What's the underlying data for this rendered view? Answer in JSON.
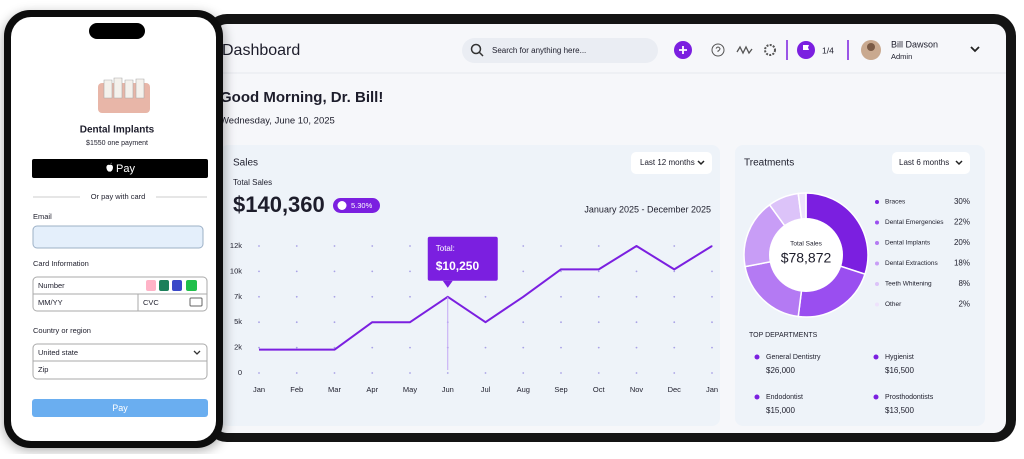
{
  "dashboard": {
    "title": "Dashboard",
    "search_placeholder": "Search for anything here...",
    "flag_count": "1/4",
    "user_name": "Bill Dawson",
    "user_role": "Admin",
    "greeting": "Good Morning, Dr. Bill!",
    "date": "Wednesday, June 10, 2025"
  },
  "sales": {
    "title": "Sales",
    "filter": "Last 12 months",
    "subtitle": "Total Sales",
    "total": "$140,360",
    "change": "5.30%",
    "range": "January 2025 - December 2025",
    "tooltip": {
      "label": "Total:",
      "value": "$10,250"
    },
    "chart": {
      "type": "line",
      "categories": [
        "Jan",
        "Feb",
        "Mar",
        "Apr",
        "May",
        "Jun",
        "Jul",
        "Aug",
        "Sep",
        "Oct",
        "Nov",
        "Dec",
        "Jan"
      ],
      "values": [
        2300,
        2300,
        2300,
        5000,
        5000,
        7500,
        5000,
        7500,
        10200,
        10200,
        12500,
        10200,
        12500
      ],
      "color": "#7b1fe0",
      "ylim": [
        0,
        12500
      ],
      "yticks": [
        0,
        {
          "value": 2500,
          "label": "2k"
        },
        {
          "value": 5000,
          "label": "5k"
        },
        {
          "value": 7500,
          "label": "7k"
        },
        {
          "value": 10000,
          "label": "10k"
        },
        {
          "value": 12500,
          "label": "12k"
        }
      ],
      "grid": true
    }
  },
  "treatments": {
    "title": "Treatments",
    "filter": "Last 6 months",
    "center_label": "Total Sales",
    "center_value": "$78,872",
    "chart": {
      "type": "pie",
      "categories": [
        "Braces",
        "Dental Emergencies",
        "Dental Implants",
        "Dental Extractions",
        "Teeth Whitening",
        "Other"
      ],
      "values": [
        30,
        22,
        20,
        18,
        8,
        2
      ],
      "value_labels": [
        "30%",
        "22%",
        "20%",
        "18%",
        "8%",
        "2%"
      ],
      "colors": [
        "#7b1fe0",
        "#9a4ef0",
        "#b47af3",
        "#c89df6",
        "#dcc3f9",
        "#eee2fc"
      ]
    }
  },
  "departments": {
    "title": "TOP DEPARTMENTS",
    "items": [
      {
        "name": "General Dentistry",
        "value": "$26,000"
      },
      {
        "name": "Hygienist",
        "value": "$16,500"
      },
      {
        "name": "Endodontist",
        "value": "$15,000"
      },
      {
        "name": "Prosthodontists",
        "value": "$13,500"
      }
    ]
  },
  "checkout": {
    "product": "Dental Implants",
    "price": "$1550 one payment",
    "apple_pay": "Pay",
    "divider": "Or pay with card",
    "email_label": "Email",
    "card_label": "Card Information",
    "number_placeholder": "Number",
    "expiry_placeholder": "MM/YY",
    "cvc_placeholder": "CVC",
    "country_label": "Country or region",
    "country_value": "United state",
    "zip_placeholder": "Zip",
    "pay_button": "Pay"
  }
}
